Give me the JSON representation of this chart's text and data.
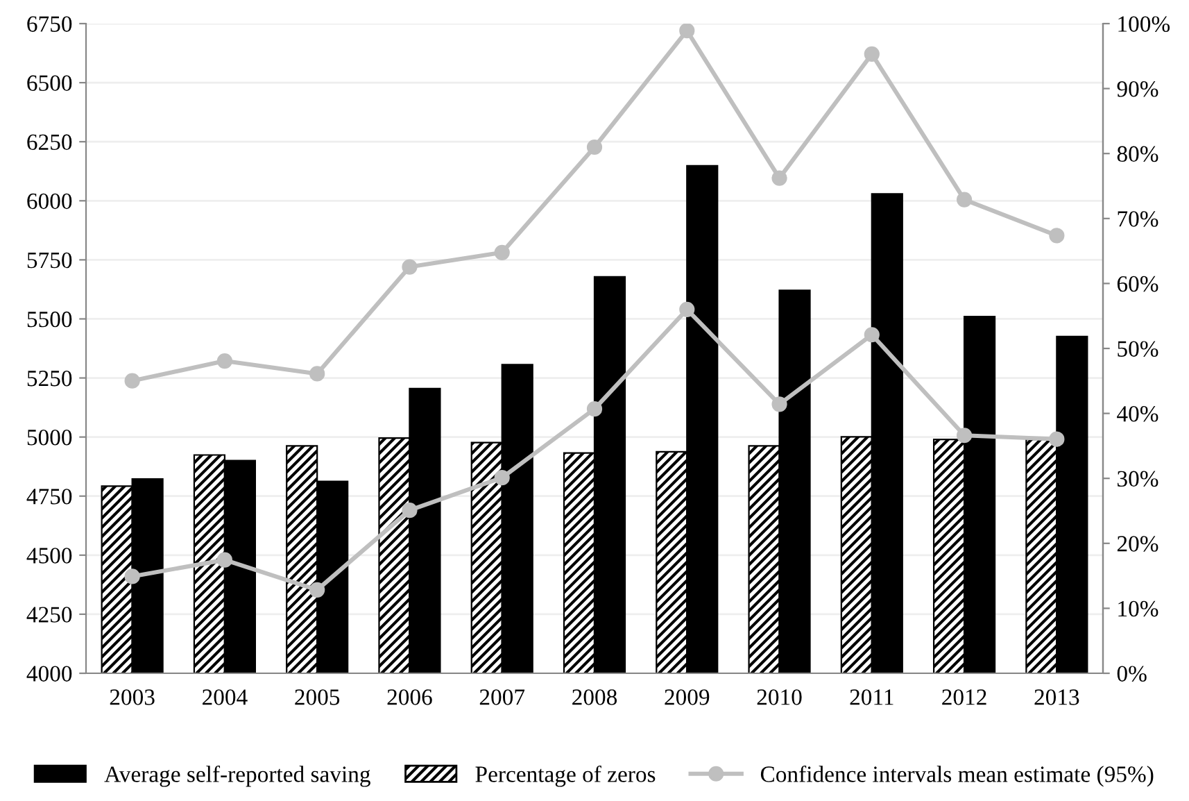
{
  "chart_data": {
    "type": "bar",
    "categories": [
      "2003",
      "2004",
      "2005",
      "2006",
      "2007",
      "2008",
      "2009",
      "2010",
      "2011",
      "2012",
      "2013"
    ],
    "series": [
      {
        "name": "Average self-reported saving",
        "color": "#000000",
        "values": [
          4822,
          4900,
          4812,
          5205,
          5306,
          5678,
          6148,
          5621,
          6029,
          5510,
          5425
        ]
      },
      {
        "name": "Percentage of zeros",
        "color": "#000000",
        "axis": "y2",
        "values": [
          28.8,
          33.6,
          35.0,
          36.2,
          35.5,
          33.9,
          34.1,
          35.0,
          36.4,
          36.0,
          36.0
        ]
      },
      {
        "name": "Confidence intervals mean estimate (95%)",
        "type": "line",
        "color": "#bfbfbf",
        "values": [
          5238,
          5322,
          5268,
          5720,
          5781,
          6227,
          6720,
          6096,
          6621,
          6005,
          5853
        ]
      },
      {
        "type": "line",
        "color": "#bfbfbf",
        "values": [
          4410,
          4480,
          4353,
          4690,
          4828,
          5119,
          5540,
          5139,
          5433,
          5007,
          4991
        ]
      }
    ],
    "ylim": [
      4000,
      6750
    ],
    "yticks": [
      4000,
      4250,
      4500,
      4750,
      5000,
      5250,
      5500,
      5750,
      6000,
      6250,
      6500,
      6750
    ],
    "y2lim": [
      0,
      100
    ],
    "y2ticks": [
      {
        "value": 0,
        "label": "0%"
      },
      {
        "value": 10,
        "label": "10%"
      },
      {
        "value": 20,
        "label": "20%"
      },
      {
        "value": 30,
        "label": "30%"
      },
      {
        "value": 40,
        "label": "40%"
      },
      {
        "value": 50,
        "label": "50%"
      },
      {
        "value": 60,
        "label": "60%"
      },
      {
        "value": 70,
        "label": "70%"
      },
      {
        "value": 80,
        "label": "80%"
      },
      {
        "value": 90,
        "label": "90%"
      },
      {
        "value": 100,
        "label": "100%"
      }
    ],
    "grid": "y",
    "legend": "bottom",
    "marker": "circle",
    "line_style": "solid"
  }
}
